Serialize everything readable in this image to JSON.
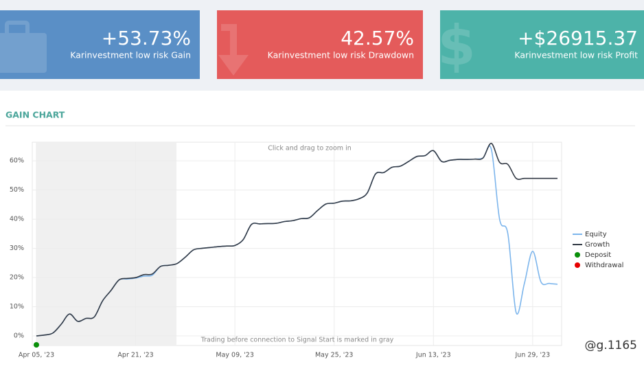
{
  "cards": [
    {
      "value": "+53.73%",
      "label": "Karinvestment low risk Gain"
    },
    {
      "value": "42.57%",
      "label": "Karinvestment low risk Drawdown"
    },
    {
      "value": "+$26915.37",
      "label": "Karinvestment low risk Profit"
    }
  ],
  "section_title": "GAIN CHART",
  "watermark": "@g.1165",
  "chart_data": {
    "type": "line",
    "annotations": [
      "Click and drag to zoom in",
      "Trading before connection to Signal Start is marked in gray"
    ],
    "categories": [
      "Apr 05, '23",
      null,
      null,
      null,
      null,
      null,
      null,
      null,
      null,
      null,
      null,
      null,
      "Apr 21, '23",
      null,
      null,
      null,
      null,
      null,
      null,
      null,
      null,
      null,
      null,
      null,
      "May 09, '23",
      null,
      null,
      null,
      null,
      null,
      null,
      null,
      null,
      null,
      null,
      null,
      "May 25, '23",
      null,
      null,
      null,
      null,
      null,
      null,
      null,
      null,
      null,
      null,
      null,
      "Jun 13, '23",
      null,
      null,
      null,
      null,
      null,
      null,
      null,
      null,
      null,
      null,
      null,
      "Jun 29, '23",
      null,
      null,
      null
    ],
    "series": [
      {
        "name": "Equity",
        "color": "#7cb5ec",
        "values": [
          0,
          0.3,
          1,
          4,
          7.5,
          5,
          6,
          6.5,
          12,
          15.5,
          19.2,
          19.5,
          19.8,
          20.5,
          20.8,
          23.8,
          24.2,
          24.8,
          27,
          29.5,
          30,
          30.3,
          30.6,
          30.8,
          31,
          33,
          38.2,
          38.4,
          38.5,
          38.6,
          39.2,
          39.5,
          40.2,
          40.5,
          43,
          45.2,
          45.5,
          46.2,
          46.3,
          47,
          49,
          55.5,
          56,
          57.8,
          58.2,
          59.8,
          61.5,
          61.8,
          63.5,
          59.8,
          60.2,
          60.5,
          60.5,
          60.6,
          61,
          64,
          40,
          35,
          8,
          18,
          29,
          18.5,
          18,
          17.7
        ]
      },
      {
        "name": "Growth",
        "color": "#333a45",
        "values": [
          0,
          0.3,
          1,
          4,
          7.5,
          5,
          6,
          6.5,
          12,
          15.5,
          19.2,
          19.7,
          20,
          21,
          21.2,
          23.8,
          24.2,
          24.8,
          27,
          29.5,
          30,
          30.3,
          30.6,
          30.8,
          31,
          33,
          38.2,
          38.4,
          38.5,
          38.6,
          39.2,
          39.5,
          40.2,
          40.5,
          43,
          45.2,
          45.5,
          46.2,
          46.3,
          47,
          49,
          55.5,
          56,
          57.8,
          58.2,
          59.8,
          61.5,
          61.8,
          63.5,
          59.8,
          60.2,
          60.5,
          60.5,
          60.6,
          61,
          66,
          59.5,
          58.8,
          54,
          54,
          54,
          54,
          54,
          54
        ]
      }
    ],
    "legend_items": [
      {
        "name": "Deposit",
        "color": "#0a8f0a"
      },
      {
        "name": "Withdrawal",
        "color": "#e60000"
      }
    ],
    "ylim": [
      -3.3,
      66.4
    ],
    "yticks": [
      {
        "value": 0,
        "label": "0%"
      },
      {
        "value": 10,
        "label": "10%"
      },
      {
        "value": 20,
        "label": "20%"
      },
      {
        "value": 30,
        "label": "30%"
      },
      {
        "value": 40,
        "label": "40%"
      },
      {
        "value": 50,
        "label": "50%"
      },
      {
        "value": 60,
        "label": "60%"
      }
    ],
    "grid": true,
    "legend": "right"
  }
}
